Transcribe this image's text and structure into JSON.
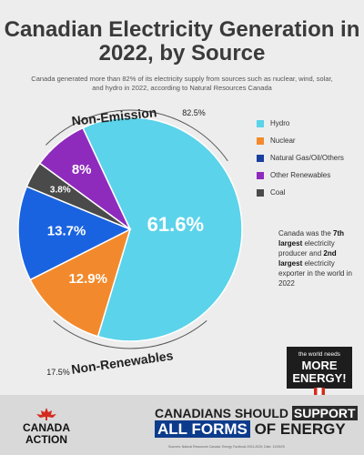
{
  "title": "Canadian Electricity Generation in 2022, by Source",
  "subtitle": "Canada generated more than 82% of its electricity supply from sources such as nuclear, wind, solar, and hydro in 2022, according to Natural Resources Canada",
  "chart_data": {
    "type": "pie",
    "title": "Canadian Electricity Generation in 2022, by Source",
    "categories": [
      "Hydro",
      "Nuclear",
      "Natural Gas/Oil/Others",
      "Coal",
      "Other Renewables"
    ],
    "values": [
      61.6,
      12.9,
      13.7,
      3.8,
      8
    ],
    "value_labels": [
      "61.6%",
      "12.9%",
      "13.7%",
      "3.8%",
      "8%"
    ],
    "colors": [
      "#5bd3ea",
      "#f28a2d",
      "#1a63e0",
      "#4a4a4a",
      "#8e2bbd"
    ],
    "groups": [
      {
        "label": "Non-Emission",
        "value": "82.5%"
      },
      {
        "label": "Non-Renewables",
        "value": "17.5%"
      }
    ],
    "legend_position": "right"
  },
  "legend": [
    {
      "label": "Hydro",
      "color": "#5bd3ea"
    },
    {
      "label": "Nuclear",
      "color": "#f28a2d"
    },
    {
      "label": "Natural Gas/Oil/Others",
      "color": "#1a3f9e"
    },
    {
      "label": "Other Renewables",
      "color": "#8e2bbd"
    },
    {
      "label": "Coal",
      "color": "#4a4a4a"
    }
  ],
  "note": {
    "p1": "Canada was the ",
    "b1": "7th largest",
    "p2": " electricity producer and ",
    "b2": "2nd largest",
    "p3": " electricity exporter in the world in 2022"
  },
  "more_energy": {
    "line1": "the world needs",
    "line2": "MORE",
    "line3": "ENERGY!"
  },
  "logo": {
    "line1": "CANADA",
    "line2": "ACTION"
  },
  "banner": {
    "line1a": "CANADIANS SHOULD ",
    "line1b": "SUPPORT",
    "line2a": "ALL FORMS",
    "line2b": " OF ENERGY"
  },
  "source": "Sources: Natural Resources Canada: Energy Factbook 2024-2025; Date: 11/05/25"
}
